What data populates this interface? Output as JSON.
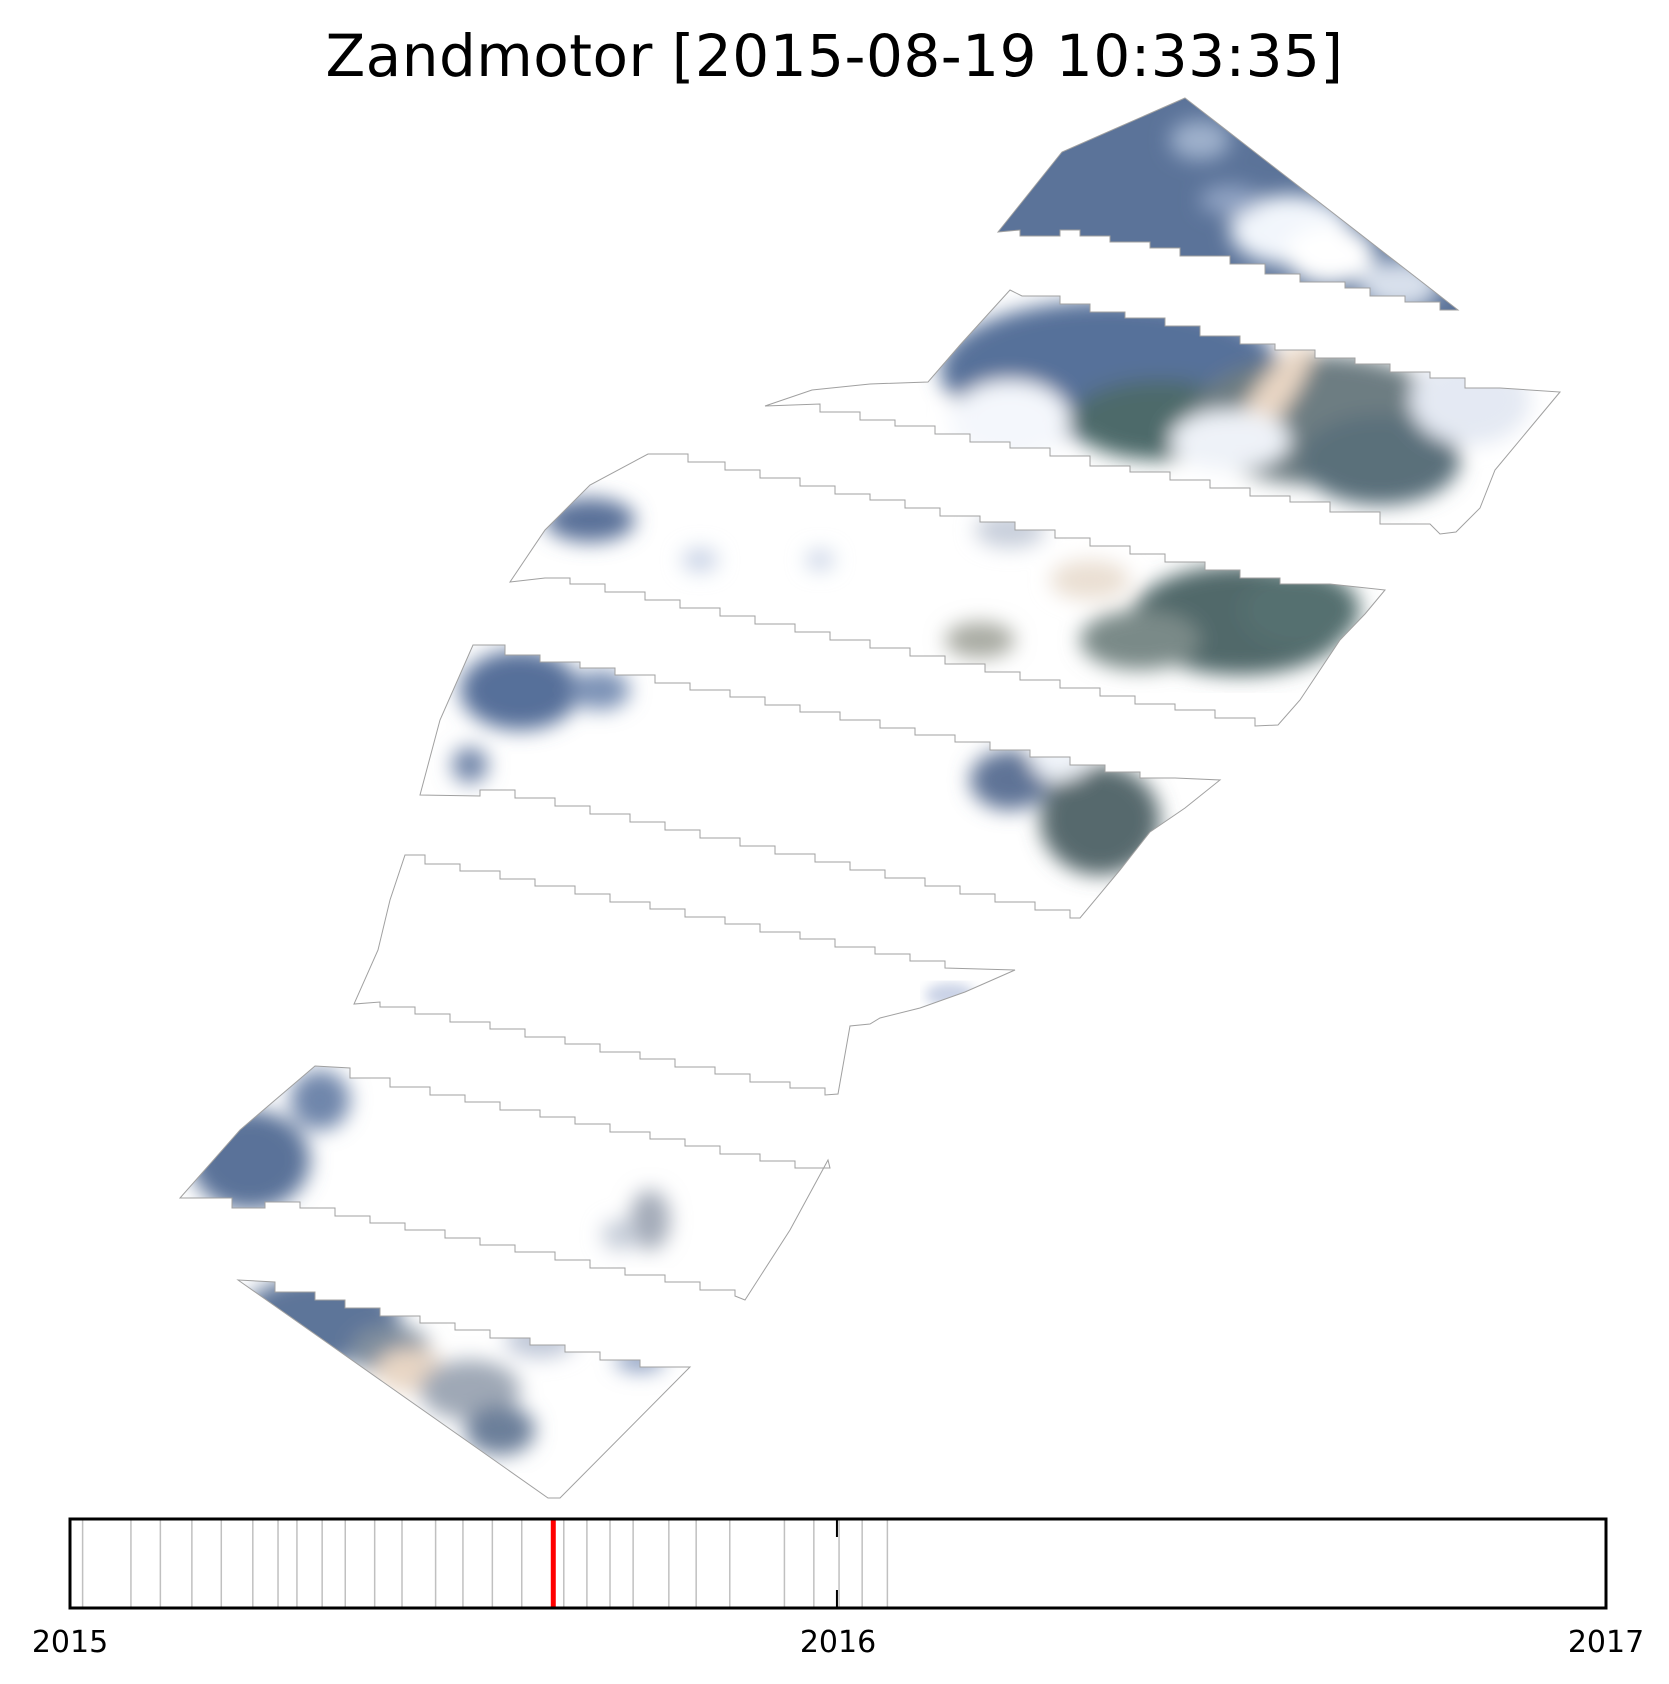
{
  "title": "Zandmotor [2015-08-19 10:33:35]",
  "timeline": {
    "start_year": 2015,
    "end_year": 2017,
    "tick_labels": [
      "2015",
      "2016",
      "2017"
    ],
    "current_date": "2015-08-19",
    "current_color": "#ff0000",
    "acquisition_dates": [
      "2015-01-07",
      "2015-01-30",
      "2015-02-13",
      "2015-02-28",
      "2015-03-14",
      "2015-03-29",
      "2015-04-10",
      "2015-04-19",
      "2015-05-01",
      "2015-05-12",
      "2015-05-26",
      "2015-06-08",
      "2015-06-24",
      "2015-07-07",
      "2015-07-21",
      "2015-08-04",
      "2015-08-24",
      "2015-09-04",
      "2015-09-15",
      "2015-09-26",
      "2015-10-13",
      "2015-10-26",
      "2015-11-11",
      "2015-12-07",
      "2015-12-21",
      "2016-01-02",
      "2016-01-13",
      "2016-01-25"
    ]
  },
  "image": {
    "description_colors": {
      "sea": "#5a7398",
      "land": "#4f6c6a",
      "cloud": "#e8eef8",
      "sand": "#e8d6c2",
      "outline": "#9a9a9a"
    }
  }
}
